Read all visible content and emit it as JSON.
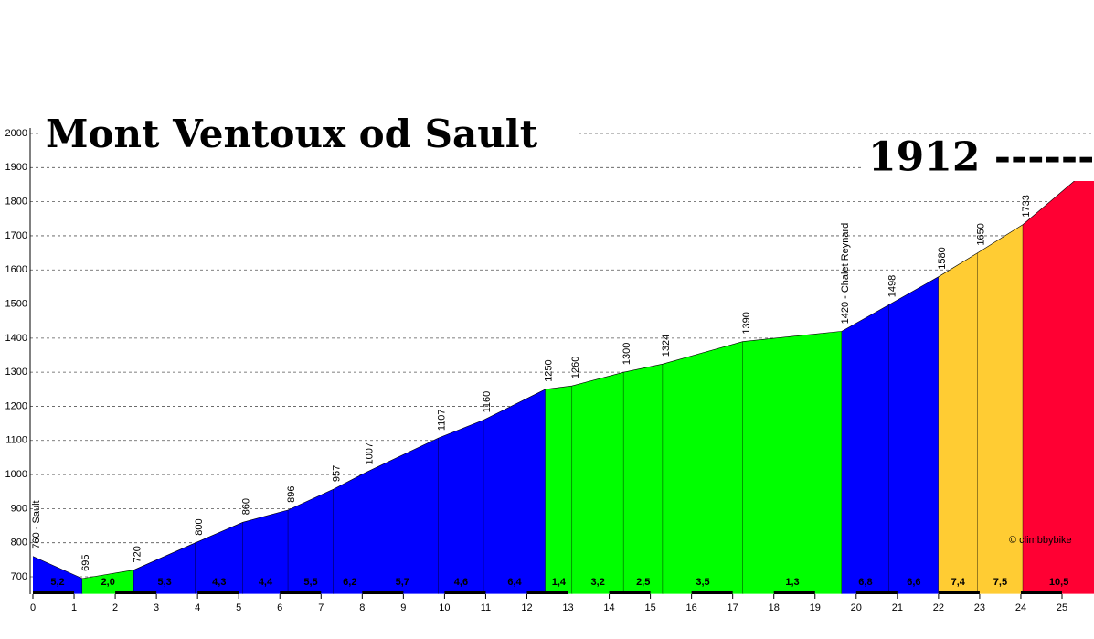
{
  "chart_data": {
    "type": "profile",
    "title": "Mont Ventoux od Sault",
    "watermark": "© climbbybike",
    "x": [
      0,
      1.2,
      2.45,
      3.95,
      5.1,
      6.2,
      7.3,
      8.1,
      9.85,
      10.95,
      12.45,
      13.1,
      14.35,
      15.3,
      17.25,
      19.65,
      20.8,
      22.0,
      22.95,
      24.05,
      25.8
    ],
    "values": [
      760,
      695,
      720,
      800,
      860,
      896,
      957,
      1007,
      1107,
      1160,
      1250,
      1260,
      1300,
      1324,
      1390,
      1420,
      1498,
      1580,
      1650,
      1733,
      1912
    ],
    "value_labels": [
      "760 - Sault",
      "695",
      "720",
      "800",
      "860",
      "896",
      "957",
      "1007",
      "1107",
      "1160",
      "1250",
      "1260",
      "1300",
      "1324",
      "1390",
      "1420 - Chalet Reynard",
      "1498",
      "1580",
      "1650",
      "1733",
      "1912 ------"
    ],
    "grades": [
      5.2,
      2.0,
      5.3,
      4.3,
      4.4,
      5.5,
      6.2,
      5.7,
      4.6,
      6.4,
      1.4,
      3.2,
      2.5,
      3.5,
      1.3,
      6.8,
      6.6,
      7.4,
      7.5,
      10.5
    ],
    "grade_labels": [
      "5,2",
      "2,0",
      "5,3",
      "4,3",
      "4,4",
      "5,5",
      "6,2",
      "5,7",
      "4,6",
      "6,4",
      "1,4",
      "3,2",
      "2,5",
      "3,5",
      "1,3",
      "6,8",
      "6,6",
      "7,4",
      "7,5",
      "10,5"
    ],
    "colors": [
      "#0000ff",
      "#00ff00",
      "#0000ff",
      "#0000ff",
      "#0000ff",
      "#0000ff",
      "#0000ff",
      "#0000ff",
      "#0000ff",
      "#0000ff",
      "#00ff00",
      "#00ff00",
      "#00ff00",
      "#00ff00",
      "#00ff00",
      "#0000ff",
      "#0000ff",
      "#ffcc33",
      "#ffcc33",
      "#ff0033"
    ],
    "xlim": [
      0,
      25.8
    ],
    "ylim": [
      650,
      2000
    ],
    "xticks": [
      0,
      1,
      2,
      3,
      4,
      5,
      6,
      7,
      8,
      9,
      10,
      11,
      12,
      13,
      14,
      15,
      16,
      17,
      18,
      19,
      20,
      21,
      22,
      23,
      24,
      25
    ],
    "yticks": [
      700,
      800,
      900,
      1000,
      1100,
      1200,
      1300,
      1400,
      1500,
      1600,
      1700,
      1800,
      1900,
      2000
    ],
    "grid": true
  }
}
